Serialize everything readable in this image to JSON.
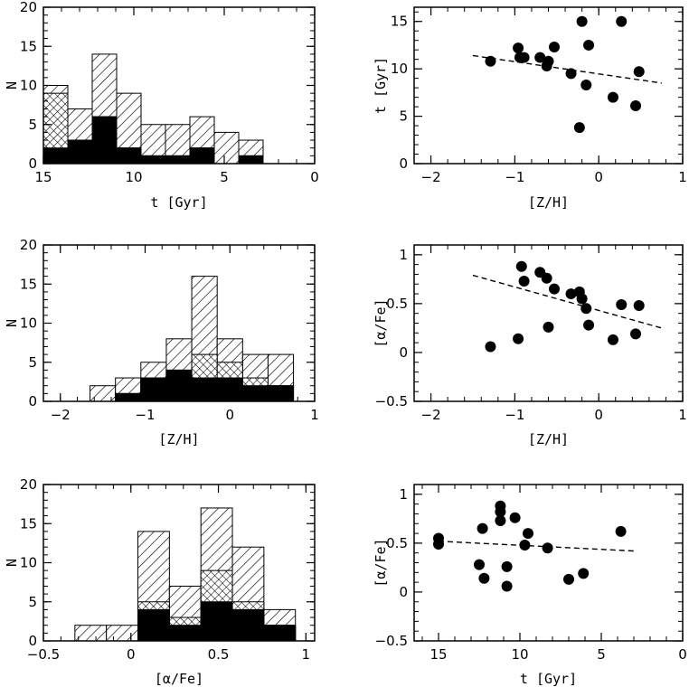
{
  "colors": {
    "ink": "#000000",
    "paper": "#ffffff"
  },
  "chart_data": [
    {
      "id": "hist-age",
      "type": "bar",
      "subtype": "stacked-histogram",
      "xlabel": "t [Gyr]",
      "ylabel": "N",
      "xlim": [
        15,
        0
      ],
      "ylim": [
        0,
        20
      ],
      "xticks": [
        15,
        10,
        5,
        0
      ],
      "yticks": [
        0,
        5,
        10,
        15,
        20
      ],
      "bin_edges": [
        15,
        13.65,
        12.3,
        10.95,
        9.6,
        8.25,
        6.9,
        5.55,
        4.2,
        2.85
      ],
      "series": [
        {
          "name": "all (hatched)",
          "pattern": "hatch",
          "values": [
            10,
            7,
            14,
            9,
            5,
            5,
            6,
            4,
            3
          ]
        },
        {
          "name": "cross-hatched",
          "pattern": "crosshatch",
          "values": [
            9,
            3,
            6,
            2,
            1,
            1,
            2,
            0,
            1
          ]
        },
        {
          "name": "solid",
          "pattern": "solid",
          "values": [
            2,
            3,
            6,
            2,
            1,
            1,
            2,
            0,
            1
          ]
        }
      ]
    },
    {
      "id": "scatter-age-metal",
      "type": "scatter",
      "xlabel": "[Z/H]",
      "ylabel": "t [Gyr]",
      "xlim": [
        -2.2,
        1
      ],
      "ylim": [
        0,
        16.5
      ],
      "xticks": [
        -2,
        -1,
        0,
        1
      ],
      "yticks": [
        0,
        5,
        10,
        15
      ],
      "points": [
        [
          -1.29,
          10.8
        ],
        [
          -0.96,
          12.2
        ],
        [
          -0.94,
          11.2
        ],
        [
          -0.89,
          11.2
        ],
        [
          -0.7,
          11.2
        ],
        [
          -0.62,
          10.3
        ],
        [
          -0.6,
          10.8
        ],
        [
          -0.53,
          12.3
        ],
        [
          -0.33,
          9.5
        ],
        [
          -0.23,
          3.8
        ],
        [
          -0.2,
          15
        ],
        [
          -0.15,
          8.3
        ],
        [
          -0.12,
          12.5
        ],
        [
          0.17,
          7
        ],
        [
          0.27,
          15
        ],
        [
          0.44,
          6.1
        ],
        [
          0.48,
          9.7
        ]
      ],
      "fit_line": {
        "x": [
          -1.5,
          0.75
        ],
        "y": [
          11.4,
          8.5
        ]
      }
    },
    {
      "id": "hist-metal",
      "type": "bar",
      "subtype": "stacked-histogram",
      "xlabel": "[Z/H]",
      "ylabel": "N",
      "xlim": [
        -2.2,
        1
      ],
      "ylim": [
        0,
        20
      ],
      "xticks": [
        -2,
        -1,
        0,
        1
      ],
      "yticks": [
        0,
        5,
        10,
        15,
        20
      ],
      "bin_edges": [
        -1.65,
        -1.35,
        -1.05,
        -0.75,
        -0.45,
        -0.15,
        0.15,
        0.45,
        0.75
      ],
      "series": [
        {
          "name": "all (hatched)",
          "pattern": "hatch",
          "values": [
            2,
            3,
            5,
            8,
            16,
            8,
            6,
            6
          ]
        },
        {
          "name": "cross-hatched",
          "pattern": "crosshatch",
          "values": [
            0,
            1,
            3,
            4,
            6,
            5,
            3,
            2
          ]
        },
        {
          "name": "solid",
          "pattern": "solid",
          "values": [
            0,
            1,
            3,
            4,
            3,
            3,
            2,
            2
          ]
        }
      ]
    },
    {
      "id": "scatter-alpha-metal",
      "type": "scatter",
      "xlabel": "[Z/H]",
      "ylabel": "[α/Fe]",
      "xlim": [
        -2.2,
        1
      ],
      "ylim": [
        -0.5,
        1.1
      ],
      "xticks": [
        -2,
        -1,
        0,
        1
      ],
      "yticks": [
        -0.5,
        0,
        0.5,
        1
      ],
      "points": [
        [
          -1.29,
          0.06
        ],
        [
          -0.96,
          0.14
        ],
        [
          -0.92,
          0.88
        ],
        [
          -0.89,
          0.73
        ],
        [
          -0.7,
          0.82
        ],
        [
          -0.62,
          0.76
        ],
        [
          -0.6,
          0.26
        ],
        [
          -0.53,
          0.65
        ],
        [
          -0.33,
          0.6
        ],
        [
          -0.23,
          0.62
        ],
        [
          -0.2,
          0.55
        ],
        [
          -0.15,
          0.45
        ],
        [
          -0.12,
          0.28
        ],
        [
          0.17,
          0.13
        ],
        [
          0.27,
          0.49
        ],
        [
          0.44,
          0.19
        ],
        [
          0.48,
          0.48
        ]
      ],
      "fit_line": {
        "x": [
          -1.5,
          0.75
        ],
        "y": [
          0.79,
          0.25
        ]
      }
    },
    {
      "id": "hist-alpha",
      "type": "bar",
      "subtype": "stacked-histogram",
      "xlabel": "[α/Fe]",
      "ylabel": "N",
      "xlim": [
        -0.5,
        1.05
      ],
      "ylim": [
        0,
        20
      ],
      "xticks": [
        -0.5,
        0,
        0.5,
        1
      ],
      "yticks": [
        0,
        5,
        10,
        15,
        20
      ],
      "bin_edges": [
        -0.32,
        -0.14,
        0.04,
        0.22,
        0.4,
        0.58,
        0.76,
        0.94
      ],
      "series": [
        {
          "name": "all (hatched)",
          "pattern": "hatch",
          "values": [
            2,
            2,
            14,
            7,
            17,
            12,
            4
          ]
        },
        {
          "name": "cross-hatched",
          "pattern": "crosshatch",
          "values": [
            0,
            0,
            5,
            3,
            9,
            5,
            2
          ]
        },
        {
          "name": "solid",
          "pattern": "solid",
          "values": [
            0,
            0,
            4,
            2,
            5,
            4,
            2
          ]
        }
      ]
    },
    {
      "id": "scatter-alpha-age",
      "type": "scatter",
      "xlabel": "t [Gyr]",
      "ylabel": "[α/Fe]",
      "xlim": [
        16.5,
        0
      ],
      "ylim": [
        -0.5,
        1.1
      ],
      "xticks": [
        15,
        10,
        5,
        0
      ],
      "yticks": [
        -0.5,
        0,
        0.5,
        1
      ],
      "points": [
        [
          15,
          0.55
        ],
        [
          15,
          0.49
        ],
        [
          12.5,
          0.28
        ],
        [
          12.3,
          0.65
        ],
        [
          12.2,
          0.14
        ],
        [
          11.2,
          0.88
        ],
        [
          11.2,
          0.82
        ],
        [
          11.2,
          0.73
        ],
        [
          10.8,
          0.26
        ],
        [
          10.8,
          0.06
        ],
        [
          10.3,
          0.76
        ],
        [
          9.7,
          0.48
        ],
        [
          9.5,
          0.6
        ],
        [
          8.3,
          0.45
        ],
        [
          7,
          0.13
        ],
        [
          6.1,
          0.19
        ],
        [
          3.8,
          0.62
        ]
      ],
      "fit_line": {
        "x": [
          15,
          3
        ],
        "y": [
          0.52,
          0.42
        ]
      }
    }
  ]
}
